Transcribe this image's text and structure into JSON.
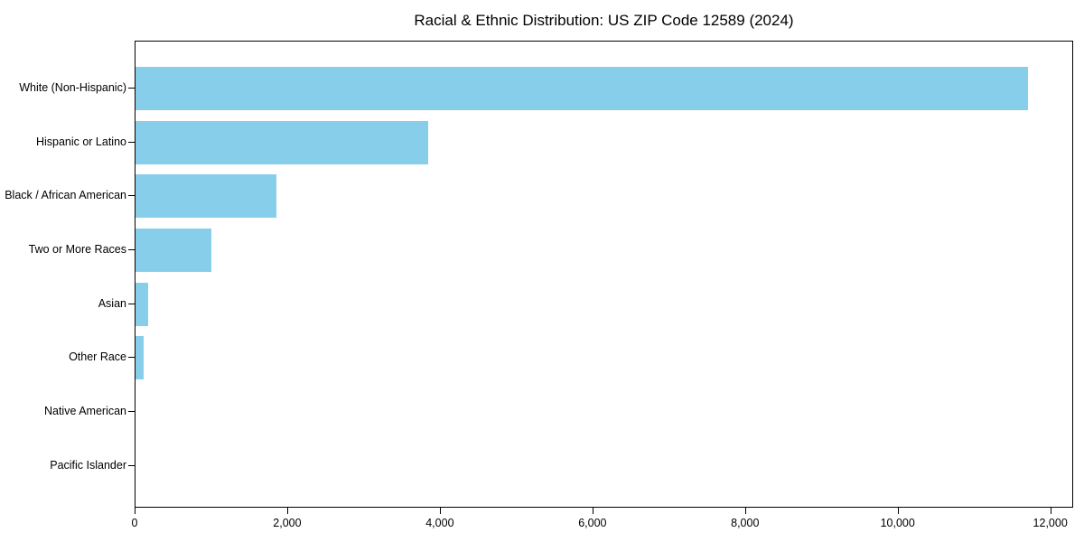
{
  "chart_data": {
    "type": "bar",
    "orientation": "horizontal",
    "title": "Racial & Ethnic Distribution: US ZIP Code 12589 (2024)",
    "categories": [
      "White (Non-Hispanic)",
      "Hispanic or Latino",
      "Black / African American",
      "Two or More Races",
      "Asian",
      "Other Race",
      "Native American",
      "Pacific Islander"
    ],
    "values": [
      11700,
      3840,
      1850,
      1000,
      160,
      110,
      0,
      0
    ],
    "xlabel": "",
    "ylabel": "",
    "xlim": [
      0,
      12300
    ],
    "xticks": [
      0,
      2000,
      4000,
      6000,
      8000,
      10000,
      12000
    ],
    "xtick_labels": [
      "0",
      "2,000",
      "4,000",
      "6,000",
      "8,000",
      "10,000",
      "12,000"
    ],
    "bar_color": "#87CEEB",
    "spine_color": "#000000",
    "text_color": "#000000",
    "background": "#ffffff",
    "grid": false,
    "legend": "none"
  }
}
